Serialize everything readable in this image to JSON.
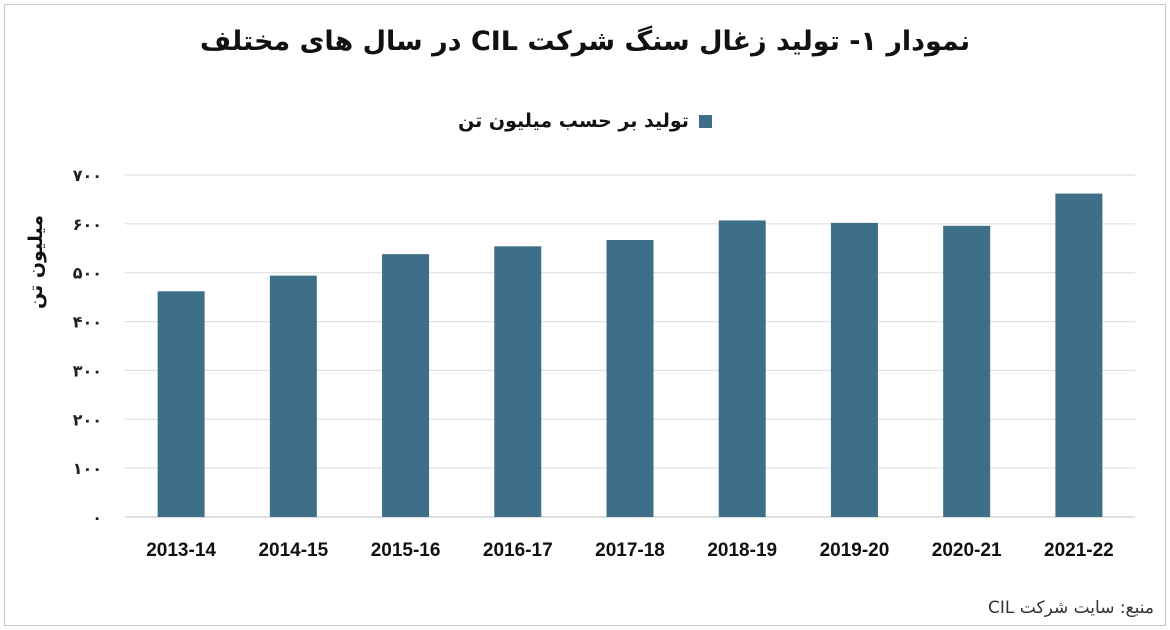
{
  "chart_data": {
    "type": "bar",
    "title": "نمودار ۱- تولید زغال سنگ شرکت CIL در سال های مختلف",
    "ylabel": "میلیون تن",
    "xlabel": "",
    "legend": {
      "placement": "top-center",
      "entries": [
        "تولید بر حسب میلیون تن"
      ]
    },
    "categories": [
      "2013-14",
      "2014-15",
      "2015-16",
      "2016-17",
      "2017-18",
      "2018-19",
      "2019-20",
      "2020-21",
      "2021-22"
    ],
    "series": [
      {
        "name": "تولید بر حسب میلیون تن",
        "values": [
          462,
          494,
          538,
          554,
          567,
          607,
          602,
          596,
          662
        ]
      }
    ],
    "ylim": [
      0,
      700
    ],
    "yticks": [
      0,
      100,
      200,
      300,
      400,
      500,
      600,
      700
    ],
    "ytick_labels": [
      "۰",
      "۱۰۰",
      "۲۰۰",
      "۳۰۰",
      "۴۰۰",
      "۵۰۰",
      "۶۰۰",
      "۷۰۰"
    ],
    "grid": true,
    "bar_color": "#3d7088"
  },
  "source_text": "منبع: سایت شرکت CIL"
}
